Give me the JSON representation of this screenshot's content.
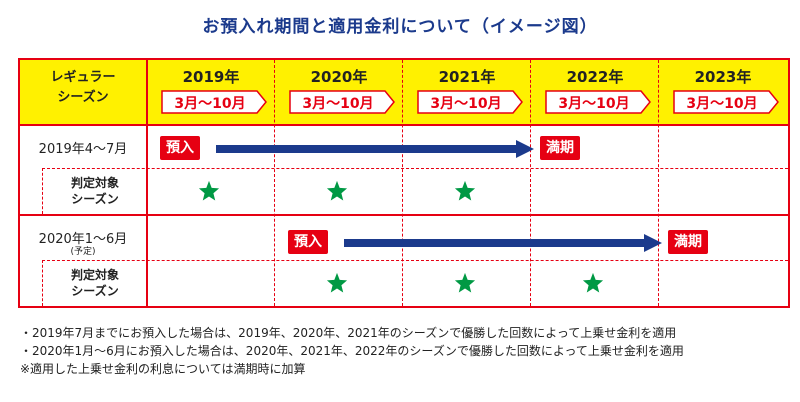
{
  "title": "お預入れ期間と適用金利について（イメージ図）",
  "header": {
    "season_label_line1": "レギュラー",
    "season_label_line2": "シーズン",
    "years": [
      {
        "year": "2019年",
        "period": "3月〜10月"
      },
      {
        "year": "2020年",
        "period": "3月〜10月"
      },
      {
        "year": "2021年",
        "period": "3月〜10月"
      },
      {
        "year": "2022年",
        "period": "3月〜10月"
      },
      {
        "year": "2023年",
        "period": "3月〜10月"
      }
    ]
  },
  "rows": [
    {
      "deposit_period": "2019年4〜7月",
      "deposit_note": "",
      "deposit_label": "預入",
      "maturity_label": "満期",
      "target_line1": "判定対象",
      "target_line2": "シーズン",
      "target_years": [
        "2019年",
        "2020年",
        "2021年"
      ]
    },
    {
      "deposit_period": "2020年1〜6月",
      "deposit_note": "(予定)",
      "deposit_label": "預入",
      "maturity_label": "満期",
      "target_line1": "判定対象",
      "target_line2": "シーズン",
      "target_years": [
        "2020年",
        "2021年",
        "2022年"
      ]
    }
  ],
  "notes": [
    "・2019年7月までにお預入した場合は、2019年、2020年、2021年のシーズンで優勝した回数によって上乗せ金利を適用",
    "・2020年1月〜6月にお預入した場合は、2020年、2021年、2022年のシーズンで優勝した回数によって上乗せ金利を適用",
    "※適用した上乗せ金利の利息については満期時に加算"
  ],
  "colors": {
    "accent_red": "#e60012",
    "header_yellow": "#fff100",
    "arrow_navy": "#1b3a8c",
    "star_green": "#009944",
    "title_blue": "#1b3a8c"
  },
  "icons": [
    "star-icon",
    "arrow-right-icon"
  ]
}
